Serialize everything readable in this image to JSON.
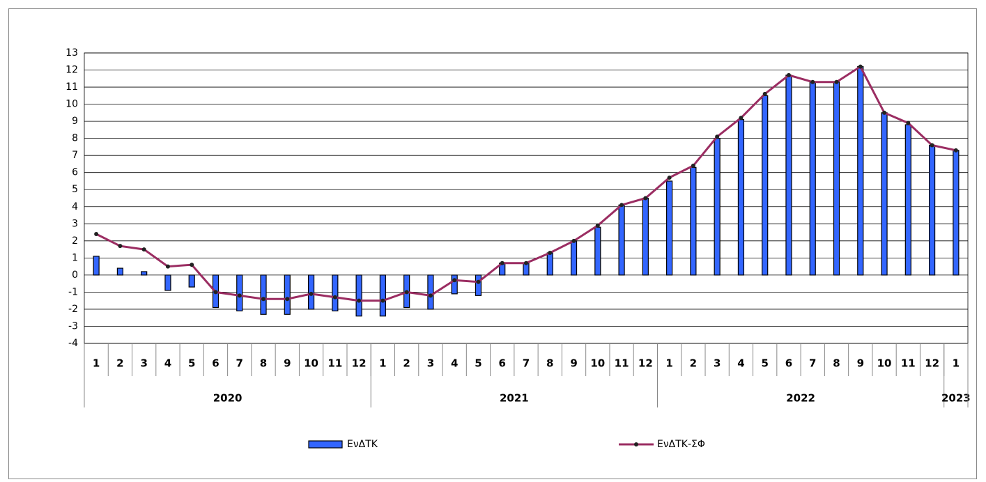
{
  "chart_data": {
    "type": "bar-line",
    "categories": [
      "1",
      "2",
      "3",
      "4",
      "5",
      "6",
      "7",
      "8",
      "9",
      "10",
      "11",
      "12",
      "1",
      "2",
      "3",
      "4",
      "5",
      "6",
      "7",
      "8",
      "9",
      "10",
      "11",
      "12",
      "1",
      "2",
      "3",
      "4",
      "5",
      "6",
      "7",
      "8",
      "9",
      "10",
      "11",
      "12",
      "1"
    ],
    "year_groups": [
      {
        "label": "2020",
        "months": 12
      },
      {
        "label": "2021",
        "months": 12
      },
      {
        "label": "2022",
        "months": 12
      },
      {
        "label": "2023",
        "months": 1
      }
    ],
    "series": [
      {
        "name": "ΕνΔΤΚ",
        "type": "bar",
        "color": "#3366ff",
        "values": [
          1.1,
          0.4,
          0.2,
          -0.9,
          -0.7,
          -1.9,
          -2.1,
          -2.3,
          -2.3,
          -2.0,
          -2.1,
          -2.4,
          -2.4,
          -1.9,
          -2.0,
          -1.1,
          -1.2,
          0.7,
          0.7,
          1.3,
          2.0,
          2.8,
          4.1,
          4.5,
          5.5,
          6.3,
          8.0,
          9.1,
          10.5,
          11.7,
          11.3,
          11.3,
          12.2,
          9.5,
          8.8,
          7.6,
          7.3
        ]
      },
      {
        "name": "ΕνΔΤΚ-ΣΦ",
        "type": "line",
        "color": "#9b2d62",
        "values": [
          2.4,
          1.7,
          1.5,
          0.5,
          0.6,
          -1.0,
          -1.2,
          -1.4,
          -1.4,
          -1.1,
          -1.3,
          -1.5,
          -1.5,
          -1.0,
          -1.2,
          -0.3,
          -0.4,
          0.7,
          0.7,
          1.3,
          2.0,
          2.9,
          4.1,
          4.5,
          5.7,
          6.4,
          8.1,
          9.2,
          10.6,
          11.7,
          11.3,
          11.3,
          12.2,
          9.5,
          8.9,
          7.6,
          7.3
        ]
      }
    ],
    "ylim": [
      -4,
      13
    ],
    "yticks": [
      -4,
      -3,
      -2,
      -1,
      0,
      1,
      2,
      3,
      4,
      5,
      6,
      7,
      8,
      9,
      10,
      11,
      12,
      13
    ],
    "grid": true,
    "legend": "bottom"
  }
}
